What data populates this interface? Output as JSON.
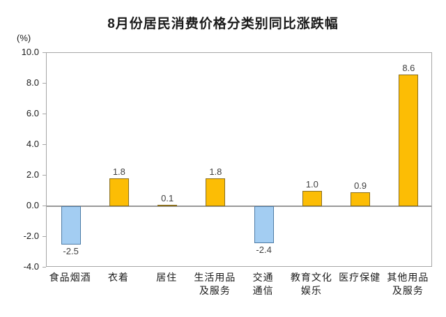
{
  "chart_data": {
    "type": "bar",
    "title": "8月份居民消费价格分类别同比涨跌幅",
    "unit_label": "(%)",
    "categories": [
      "食品烟酒",
      "衣着",
      "居住",
      "生活用品\n及服务",
      "交通\n通信",
      "教育文化\n娱乐",
      "医疗保健",
      "其他用品\n及服务"
    ],
    "values": [
      -2.5,
      1.8,
      0.1,
      1.8,
      -2.4,
      1.0,
      0.9,
      8.6
    ],
    "value_labels": [
      "-2.5",
      "1.8",
      "0.1",
      "1.8",
      "-2.4",
      "1.0",
      "0.9",
      "8.6"
    ],
    "ylim": [
      -4.0,
      10.0
    ],
    "ytick_labels": [
      "10.0",
      "8.0",
      "6.0",
      "4.0",
      "2.0",
      "0.0",
      "-2.0",
      "-4.0"
    ],
    "ytick_values": [
      10.0,
      8.0,
      6.0,
      4.0,
      2.0,
      0.0,
      -2.0,
      -4.0
    ],
    "xlabel": "",
    "ylabel": "(%)",
    "legend": "none",
    "grid": false,
    "colors": {
      "positive_fill": "#fcbd05",
      "positive_border": "#8a6f1f",
      "negative_fill": "#a3cdf2",
      "negative_border": "#4e7ca6",
      "zero_line": "#999999",
      "plot_border": "#a6a6a6",
      "text": "#1a1a1a"
    }
  }
}
